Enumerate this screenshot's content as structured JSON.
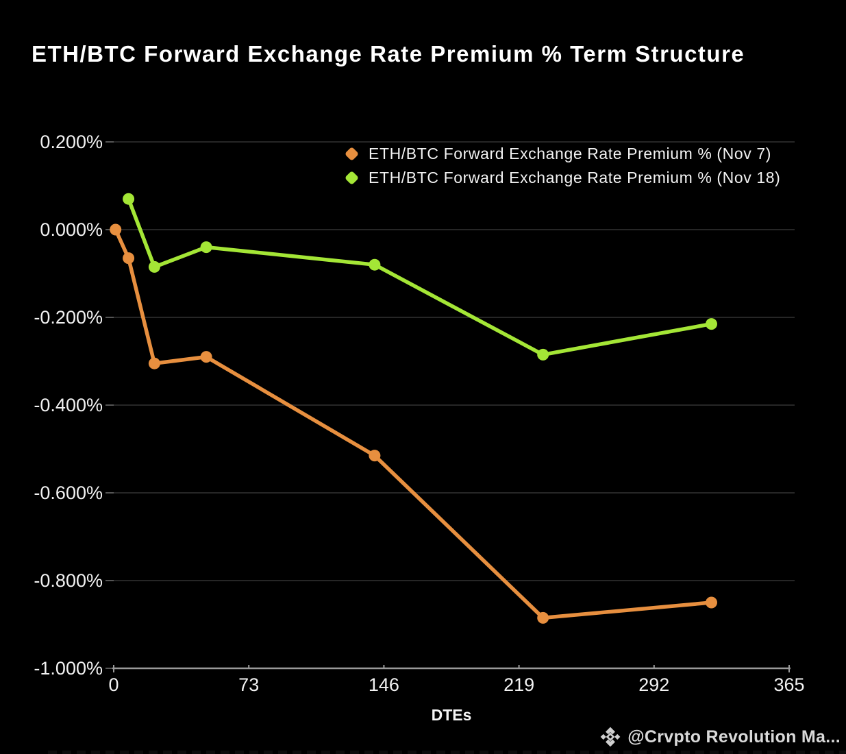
{
  "title": "ETH/BTC Forward Exchange Rate Premium % Term Structure",
  "watermark": {
    "icon": "binance-diamond-icon",
    "text": "@Crvpto Revolution Ma..."
  },
  "colors": {
    "background": "#000000",
    "title_text": "#ffffff",
    "tick_text": "#f2f2f2",
    "gridline": "#262626",
    "axis_line": "#9a9a9a",
    "nov7_orange": "#E78F3F",
    "nov18_green": "#A4E636",
    "watermark_gray": "#d0d0d0"
  },
  "chart_data": {
    "type": "line",
    "title": "ETH/BTC Forward Exchange Rate Premium % Term Structure",
    "xlabel": "DTEs",
    "ylabel": "",
    "xlim": [
      0,
      365
    ],
    "ylim": [
      -1.0,
      0.2
    ],
    "x_ticks": [
      0,
      73,
      146,
      219,
      292,
      365
    ],
    "y_ticks": [
      "0.200%",
      "0.000%",
      "-0.200%",
      "-0.400%",
      "-0.600%",
      "-0.800%",
      "-1.000%"
    ],
    "y_tick_values": [
      0.2,
      0.0,
      -0.2,
      -0.4,
      -0.6,
      -0.8,
      -1.0
    ],
    "grid": "horizontal-only",
    "legend_position": "top-center-inside",
    "series": [
      {
        "name": "ETH/BTC Forward Exchange Rate Premium % (Nov 7)",
        "color": "#E78F3F",
        "x": [
          1,
          8,
          22,
          50,
          141,
          232,
          323
        ],
        "values": [
          0.0,
          -0.065,
          -0.305,
          -0.29,
          -0.515,
          -0.885,
          -0.85
        ]
      },
      {
        "name": "ETH/BTC Forward Exchange Rate Premium % (Nov 18)",
        "color": "#A4E636",
        "x": [
          8,
          22,
          50,
          141,
          232,
          323
        ],
        "values": [
          0.07,
          -0.085,
          -0.04,
          -0.08,
          -0.285,
          -0.215
        ]
      }
    ]
  }
}
